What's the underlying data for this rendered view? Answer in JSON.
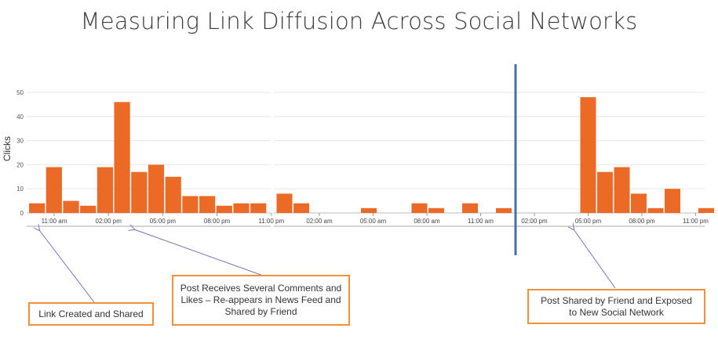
{
  "title": "Measuring Link Diffusion Across Social Networks",
  "colors": {
    "bar": "#ea6a26",
    "divider": "#4a6fa8",
    "callout_border": "#f0913a",
    "arrow": "#7b6fb8"
  },
  "chart_data": {
    "type": "bar",
    "ylabel": "Clicks",
    "ylim": [
      0,
      50
    ],
    "yticks": [
      0,
      10,
      20,
      30,
      40,
      50
    ],
    "grid": true,
    "panels": [
      {
        "name": "left",
        "xticks": [
          "11:00 am",
          "02:00 pm",
          "05:00 pm",
          "08:00 pm",
          "11:00 pm"
        ],
        "values": [
          4,
          19,
          5,
          3,
          19,
          46,
          17,
          20,
          15,
          7,
          7,
          3,
          4,
          4
        ]
      },
      {
        "name": "right",
        "xticks": [
          "02:00 am",
          "05:00 am",
          "08:00 am",
          "11:00 am",
          "02:00 pm",
          "05:00 pm",
          "08:00 pm",
          "11:00 pm"
        ],
        "values": [
          8,
          4,
          0,
          0,
          0,
          2,
          0,
          0,
          4,
          2,
          0,
          4,
          0,
          2,
          0,
          0,
          0,
          0,
          48,
          17,
          19,
          8,
          2,
          10,
          0,
          2
        ]
      }
    ]
  },
  "callouts": [
    "Link Created and Shared",
    "Post Receives Several Comments and Likes – Re-appears in News Feed and Shared by Friend",
    "Post Shared by Friend and Exposed to New Social Network"
  ]
}
